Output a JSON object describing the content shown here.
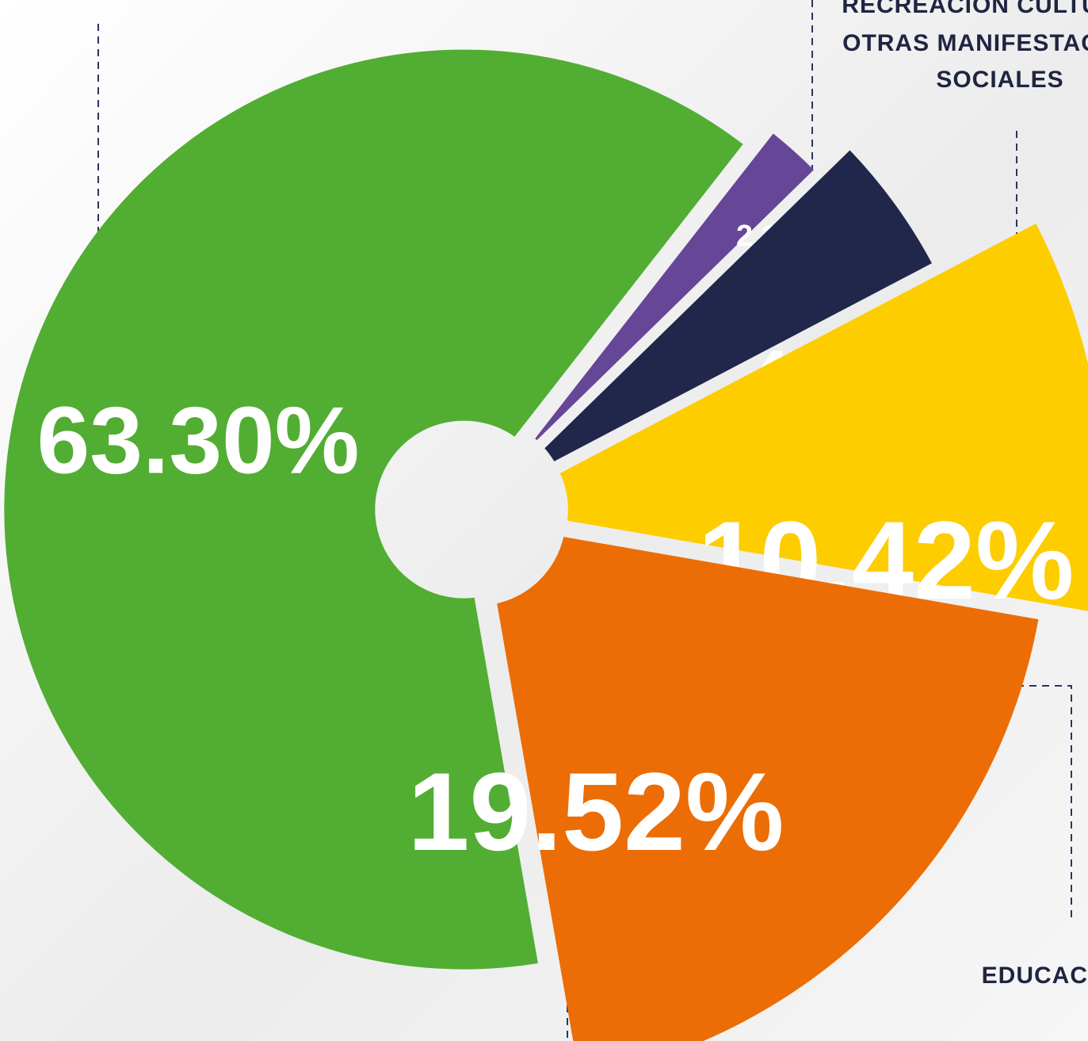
{
  "chart_data": {
    "type": "pie",
    "donut": true,
    "values": [
      63.3,
      2.14,
      4.62,
      10.42,
      19.52
    ],
    "value_labels": [
      "63.30%",
      "2.14 %",
      "4.62%",
      "10.42%",
      "19.52%"
    ],
    "colors": [
      "#52ad33",
      "#664696",
      "#20274b",
      "#fdcd00",
      "#ec6d05"
    ],
    "annotations": [
      "RECREACIÓN CULTU",
      "OTRAS MANIFESTAC",
      "SOCIALES",
      "EDUCAC"
    ]
  }
}
